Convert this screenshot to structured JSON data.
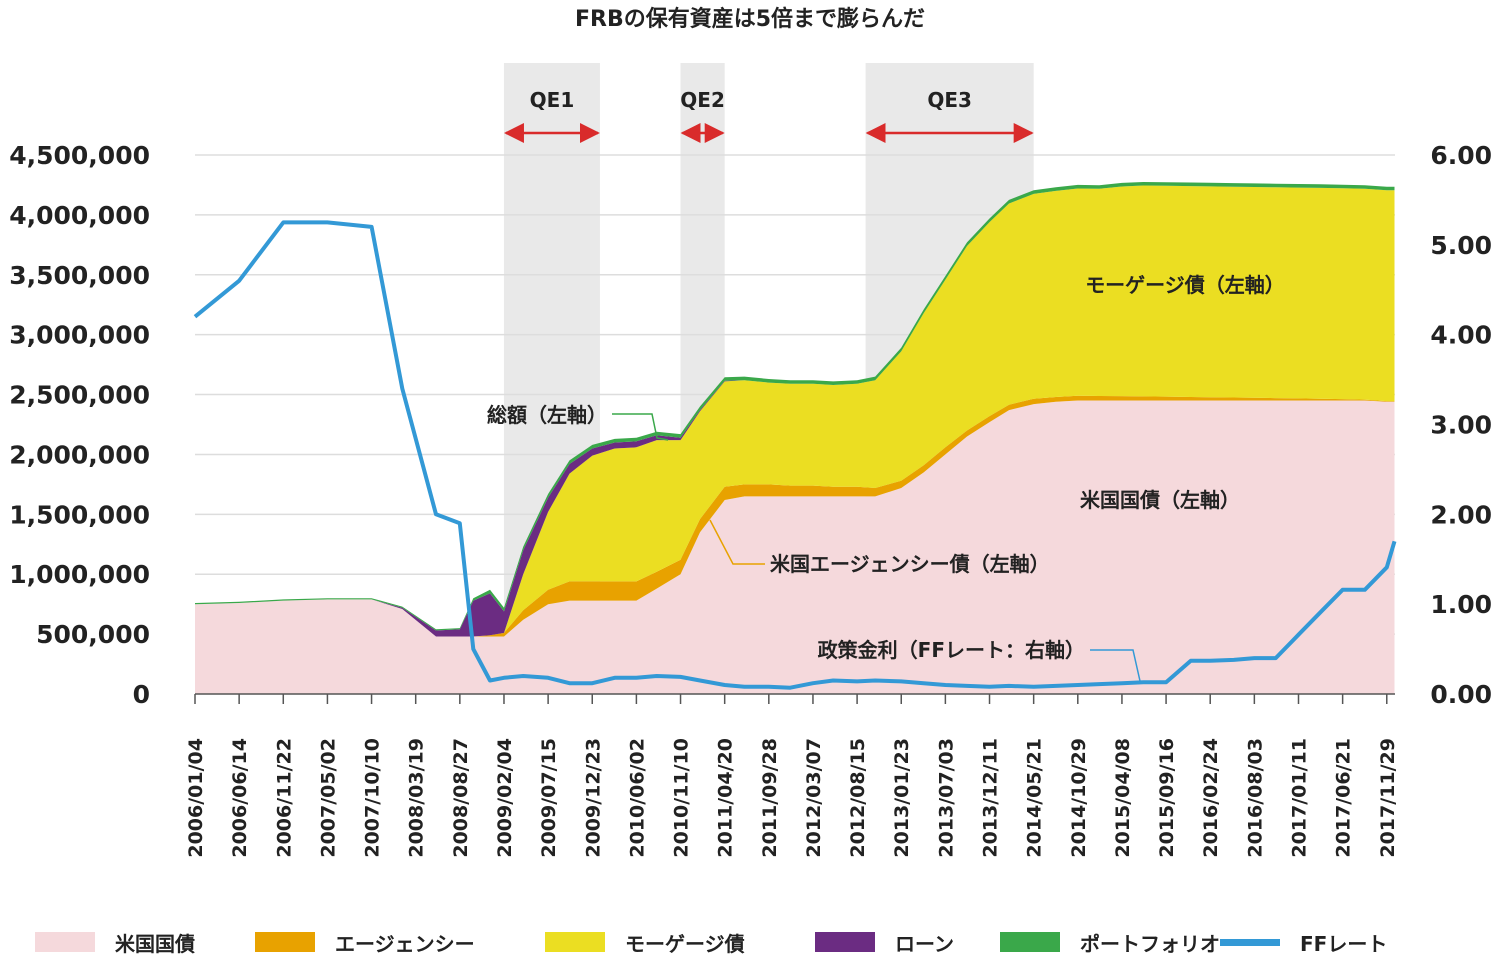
{
  "chart_data": {
    "type": "area",
    "title": "FRBの保有資産は5倍まで膨らんだ",
    "x_tick_labels": [
      "2006/01/04",
      "2006/06/14",
      "2006/11/22",
      "2007/05/02",
      "2007/10/10",
      "2008/03/19",
      "2008/08/27",
      "2009/02/04",
      "2009/07/15",
      "2009/12/23",
      "2010/06/02",
      "2010/11/10",
      "2011/04/20",
      "2011/09/28",
      "2012/03/07",
      "2012/08/15",
      "2013/01/23",
      "2013/07/03",
      "2013/12/11",
      "2014/05/21",
      "2014/10/29",
      "2015/04/08",
      "2015/09/16",
      "2016/02/24",
      "2016/08/03",
      "2017/01/11",
      "2017/06/21",
      "2017/11/29"
    ],
    "y_left": {
      "ylim": [
        0,
        4500000
      ],
      "ticks": [
        "0",
        "500,000",
        "1,000,000",
        "1,500,000",
        "2,000,000",
        "2,500,000",
        "3,000,000",
        "3,500,000",
        "4,000,000",
        "4,500,000"
      ]
    },
    "y_right": {
      "ylim": [
        0,
        6
      ],
      "ticks": [
        "0.00",
        "1.00",
        "2.00",
        "3.00",
        "4.00",
        "5.00",
        "6.00"
      ]
    },
    "x": [
      "2006/01/04",
      "2006/06/14",
      "2006/11/22",
      "2007/05/02",
      "2007/10/10",
      "2008/01/30",
      "2008/06/01",
      "2008/08/27",
      "2008/10/15",
      "2008/12/15",
      "2009/02/04",
      "2009/04/15",
      "2009/07/15",
      "2009/10/01",
      "2009/12/23",
      "2010/03/15",
      "2010/06/02",
      "2010/08/15",
      "2010/11/10",
      "2011/01/20",
      "2011/04/20",
      "2011/07/01",
      "2011/09/28",
      "2011/12/15",
      "2012/03/07",
      "2012/05/20",
      "2012/08/15",
      "2012/10/20",
      "2013/01/23",
      "2013/04/15",
      "2013/07/03",
      "2013/09/20",
      "2013/12/11",
      "2014/02/20",
      "2014/05/21",
      "2014/08/10",
      "2014/10/29",
      "2015/01/15",
      "2015/04/08",
      "2015/06/25",
      "2015/09/16",
      "2015/12/15",
      "2016/02/24",
      "2016/05/20",
      "2016/08/03",
      "2016/10/20",
      "2017/01/11",
      "2017/04/01",
      "2017/06/21",
      "2017/09/10",
      "2017/11/29",
      "2017/12/27"
    ],
    "series": [
      {
        "name": "米国国債",
        "color": "#f5d9dc",
        "values": [
          750000,
          760000,
          780000,
          790000,
          790000,
          710000,
          480000,
          480000,
          480000,
          480000,
          480000,
          620000,
          750000,
          780000,
          780000,
          780000,
          780000,
          880000,
          1000000,
          1350000,
          1620000,
          1650000,
          1650000,
          1650000,
          1650000,
          1650000,
          1650000,
          1650000,
          1720000,
          1850000,
          2000000,
          2150000,
          2270000,
          2370000,
          2420000,
          2440000,
          2450000,
          2450000,
          2450000,
          2450000,
          2450000,
          2450000,
          2450000,
          2450000,
          2450000,
          2450000,
          2450000,
          2450000,
          2450000,
          2450000,
          2440000,
          2440000
        ]
      },
      {
        "name": "エージェンシー",
        "color": "#e8a200",
        "values": [
          0,
          0,
          0,
          0,
          0,
          0,
          0,
          0,
          0,
          10000,
          30000,
          80000,
          120000,
          160000,
          160000,
          160000,
          160000,
          140000,
          120000,
          110000,
          110000,
          100000,
          100000,
          90000,
          90000,
          80000,
          80000,
          70000,
          60000,
          60000,
          60000,
          50000,
          50000,
          45000,
          45000,
          40000,
          40000,
          38000,
          37000,
          35000,
          33000,
          30000,
          28000,
          25000,
          23000,
          20000,
          18000,
          15000,
          12000,
          8000,
          5000,
          5000
        ]
      },
      {
        "name": "モーゲージ債",
        "color": "#ebde22",
        "values": [
          0,
          0,
          0,
          0,
          0,
          0,
          0,
          0,
          0,
          0,
          0,
          300000,
          650000,
          900000,
          1050000,
          1110000,
          1120000,
          1100000,
          1000000,
          900000,
          880000,
          870000,
          850000,
          850000,
          850000,
          850000,
          860000,
          900000,
          1080000,
          1270000,
          1400000,
          1540000,
          1620000,
          1680000,
          1710000,
          1720000,
          1730000,
          1730000,
          1750000,
          1760000,
          1760000,
          1760000,
          1760000,
          1760000,
          1760000,
          1760000,
          1760000,
          1760000,
          1760000,
          1760000,
          1760000,
          1760000
        ]
      },
      {
        "name": "ローン",
        "color": "#6b2c82",
        "values": [
          0,
          0,
          0,
          0,
          0,
          10000,
          50000,
          60000,
          300000,
          350000,
          180000,
          200000,
          120000,
          80000,
          60000,
          50000,
          50000,
          40000,
          20000,
          10000,
          5000,
          0,
          0,
          0,
          0,
          0,
          0,
          0,
          0,
          0,
          0,
          0,
          0,
          0,
          0,
          0,
          0,
          0,
          0,
          0,
          0,
          0,
          0,
          0,
          0,
          0,
          0,
          0,
          0,
          0,
          0,
          0
        ]
      },
      {
        "name": "ポートフォリオ",
        "color": "#3aa84a",
        "values": [
          10000,
          10000,
          10000,
          10000,
          10000,
          10000,
          10000,
          10000,
          20000,
          30000,
          30000,
          30000,
          30000,
          30000,
          30000,
          30000,
          30000,
          30000,
          30000,
          30000,
          30000,
          30000,
          30000,
          30000,
          30000,
          30000,
          30000,
          30000,
          30000,
          30000,
          30000,
          30000,
          30000,
          30000,
          30000,
          30000,
          30000,
          30000,
          30000,
          30000,
          30000,
          30000,
          30000,
          30000,
          30000,
          30000,
          30000,
          30000,
          30000,
          30000,
          30000,
          30000
        ]
      },
      {
        "name": "FFレート",
        "color": "#3399d6",
        "axis": "right",
        "values": [
          4.2,
          4.6,
          5.25,
          5.25,
          5.2,
          3.4,
          2.0,
          1.9,
          0.5,
          0.15,
          0.18,
          0.2,
          0.18,
          0.12,
          0.12,
          0.18,
          0.18,
          0.2,
          0.19,
          0.15,
          0.1,
          0.08,
          0.08,
          0.07,
          0.12,
          0.15,
          0.14,
          0.15,
          0.14,
          0.12,
          0.1,
          0.09,
          0.08,
          0.09,
          0.08,
          0.09,
          0.1,
          0.11,
          0.12,
          0.13,
          0.13,
          0.37,
          0.37,
          0.38,
          0.4,
          0.4,
          0.66,
          0.91,
          1.16,
          1.16,
          1.41,
          1.7
        ]
      }
    ],
    "qe_periods": [
      {
        "label": "QE1"
      },
      {
        "label": "QE2"
      },
      {
        "label": "QE3"
      }
    ],
    "annotations": [
      {
        "text": "総額（左軸）"
      },
      {
        "text": "モーゲージ債（左軸）"
      },
      {
        "text": "米国国債（左軸）"
      },
      {
        "text": "米国エージェンシー債（左軸）"
      },
      {
        "text": "政策金利（FFレート：右軸）"
      }
    ],
    "legend": {
      "position": "bottom",
      "items": [
        {
          "label": "米国国債",
          "color": "#f5d9dc",
          "kind": "box"
        },
        {
          "label": "エージェンシー",
          "color": "#e8a200",
          "kind": "box"
        },
        {
          "label": "モーゲージ債",
          "color": "#ebde22",
          "kind": "box"
        },
        {
          "label": "ローン",
          "color": "#6b2c82",
          "kind": "box"
        },
        {
          "label": "ポートフォリオ",
          "color": "#3aa84a",
          "kind": "box"
        },
        {
          "label": "FFレート",
          "color": "#3399d6",
          "kind": "line"
        }
      ]
    },
    "qe_band_color": "#e9e9e9",
    "arrow_color": "#d92b2b",
    "grid": true
  }
}
